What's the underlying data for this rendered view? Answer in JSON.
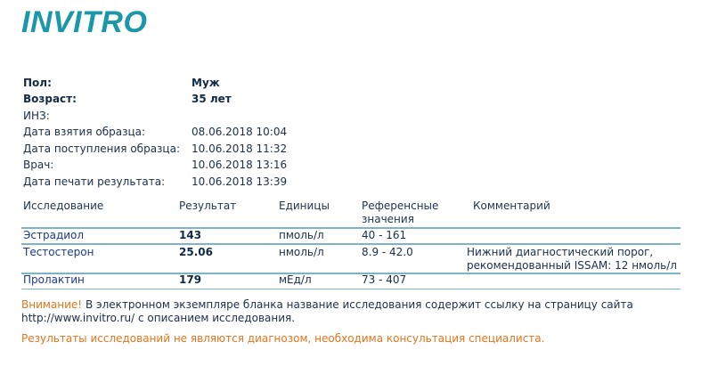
{
  "logo": "INVITRO",
  "patient": [
    {
      "label": "Пол:",
      "value": "Муж",
      "bold": true
    },
    {
      "label": "Возраст:",
      "value": "35 лет",
      "bold": true
    },
    {
      "label": "ИНЗ:",
      "value": ""
    },
    {
      "label": "Дата взятия образца:",
      "value": "08.06.2018 10:04"
    },
    {
      "label": "Дата поступления образца:",
      "value": "10.06.2018 11:32"
    },
    {
      "label": "Врач:",
      "value": "10.06.2018 13:16"
    },
    {
      "label": "Дата печати результата:",
      "value": "10.06.2018 13:39"
    }
  ],
  "table": {
    "headers": {
      "test": "Исследование",
      "result": "Результат",
      "units": "Единицы",
      "ref1": "Референсные",
      "ref2": "значения",
      "comment": "Комментарий"
    },
    "rows": [
      {
        "test": "Эстрадиол",
        "result": "143",
        "units": "пмоль/л",
        "ref": "40 - 161",
        "comment1": "",
        "comment2": ""
      },
      {
        "test": "Тестостерон",
        "result": "25.06",
        "units": "нмоль/л",
        "ref": "8.9 - 42.0",
        "comment1": "Нижний диагностический порог,",
        "comment2": "рекомендованный ISSAM: 12 нмоль/л"
      },
      {
        "test": "Пролактин",
        "result": "179",
        "units": "мЕд/л",
        "ref": "73 - 407",
        "comment1": "",
        "comment2": ""
      }
    ]
  },
  "notice": {
    "warning": "Внимание!",
    "text1": " В электронном экземпляре бланка название исследования содержит ссылку на страницу сайта",
    "link": "http://www.invitro.ru/",
    "text2": " с описанием исследования."
  },
  "disclaimer": "Результаты исследований не являются диагнозом, необходима консультация специалиста.",
  "colors": {
    "brand": "#1b98a8",
    "accent": "#e8731a"
  }
}
